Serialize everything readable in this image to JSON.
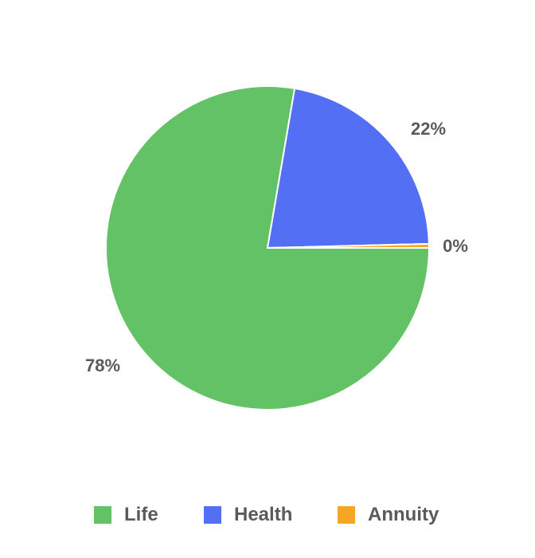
{
  "chart_data": {
    "type": "pie",
    "categories": [
      "Life",
      "Health",
      "Annuity"
    ],
    "values": [
      78,
      22,
      0.4
    ],
    "labels": [
      "78%",
      "22%",
      "0%"
    ],
    "colors": [
      "#62c265",
      "#5370f5",
      "#f5a623"
    ],
    "legend_position": "bottom"
  }
}
